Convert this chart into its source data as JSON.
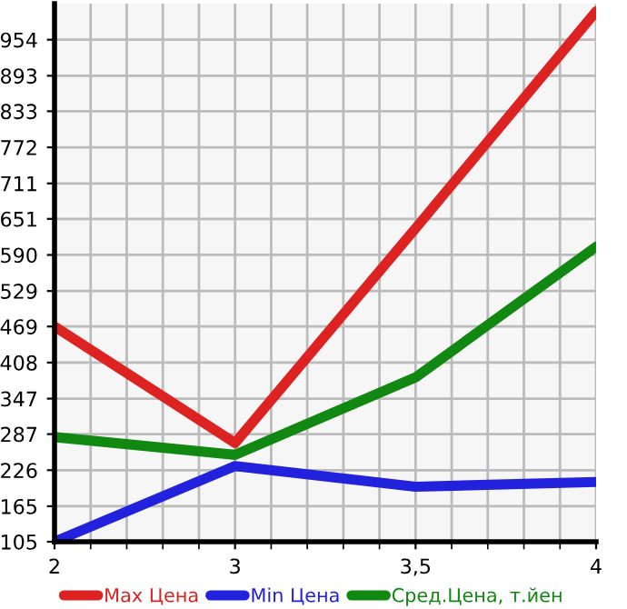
{
  "chart_data": {
    "type": "line",
    "categories": [
      "2",
      "3",
      "3,5",
      "4"
    ],
    "series": [
      {
        "name": "Max Цена",
        "color": "#dd2222",
        "values": [
          469,
          272,
          635,
          1002
        ]
      },
      {
        "name": "Min Цена",
        "color": "#2222dd",
        "values": [
          105,
          233,
          198,
          206
        ]
      },
      {
        "name": "Сред.Цена, т.йен",
        "color": "#118811",
        "values": [
          282,
          252,
          383,
          604
        ]
      }
    ],
    "ylim": [
      105,
      1015
    ],
    "yticks": [
      105,
      165,
      226,
      287,
      347,
      408,
      469,
      529,
      590,
      651,
      711,
      772,
      833,
      893,
      954
    ],
    "grid": true,
    "legend": "bottom",
    "marker": "none",
    "line_style": "solid"
  }
}
